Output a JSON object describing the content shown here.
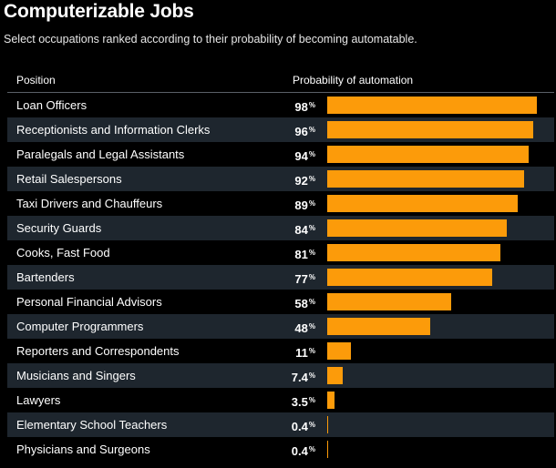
{
  "title": "Computerizable Jobs",
  "subtitle": "Select occupations ranked according to their probability of becoming automatable.",
  "header": {
    "position": "Position",
    "probability": "Probability of automation"
  },
  "colors": {
    "bar": "#fc9b0a",
    "row_alt": "#1e262e",
    "background": "#000000"
  },
  "chart_data": {
    "type": "bar",
    "orientation": "horizontal",
    "title": "Computerizable Jobs",
    "subtitle": "Select occupations ranked according to their probability of becoming automatable.",
    "xlabel": "Probability of automation",
    "ylabel": "Position",
    "unit": "%",
    "xlim": [
      0,
      100
    ],
    "categories": [
      "Loan Officers",
      "Receptionists and Information Clerks",
      "Paralegals and Legal Assistants",
      "Retail Salespersons",
      "Taxi Drivers and Chauffeurs",
      "Security Guards",
      "Cooks, Fast Food",
      "Bartenders",
      "Personal Financial Advisors",
      "Computer Programmers",
      "Reporters and Correspondents",
      "Musicians and Singers",
      "Lawyers",
      "Elementary School Teachers",
      "Physicians and Surgeons"
    ],
    "values": [
      98,
      96,
      94,
      92,
      89,
      84,
      81,
      77,
      58,
      48,
      11,
      7.4,
      3.5,
      0.4,
      0.4
    ],
    "labels": [
      "98",
      "96",
      "94",
      "92",
      "89",
      "84",
      "81",
      "77",
      "58",
      "48",
      "11",
      "7.4",
      "3.5",
      "0.4",
      "0.4"
    ]
  }
}
